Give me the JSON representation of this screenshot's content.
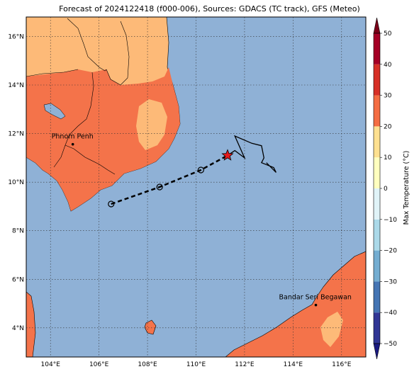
{
  "title": "Forecast of 2024122418 (f000-006), Sources: GDACS (TC track), GFS (Meteo)",
  "map": {
    "lon_range": [
      103.0,
      117.0
    ],
    "lat_range": [
      2.8,
      16.8
    ],
    "x_ticks": [
      {
        "value": 104,
        "label": "104°E"
      },
      {
        "value": 106,
        "label": "106°E"
      },
      {
        "value": 108,
        "label": "108°E"
      },
      {
        "value": 110,
        "label": "110°E"
      },
      {
        "value": 112,
        "label": "112°E"
      },
      {
        "value": 114,
        "label": "114°E"
      },
      {
        "value": 116,
        "label": "116°E"
      }
    ],
    "y_ticks": [
      {
        "value": 4,
        "label": "4°N"
      },
      {
        "value": 6,
        "label": "6°N"
      },
      {
        "value": 8,
        "label": "8°N"
      },
      {
        "value": 10,
        "label": "10°N"
      },
      {
        "value": 12,
        "label": "12°N"
      },
      {
        "value": 14,
        "label": "14°N"
      },
      {
        "value": 16,
        "label": "16°N"
      }
    ],
    "gridlines": true,
    "sea_color": "#8fb1d6",
    "cities": [
      {
        "name": "Phnom Penh",
        "lon": 104.92,
        "lat": 11.56
      },
      {
        "name": "Bandar Seri Begawan",
        "lon": 114.94,
        "lat": 4.94
      }
    ],
    "forecast_track": [
      {
        "lon": 106.5,
        "lat": 9.1
      },
      {
        "lon": 108.5,
        "lat": 9.8
      },
      {
        "lon": 110.2,
        "lat": 10.5
      },
      {
        "lon": 111.3,
        "lat": 11.1
      }
    ],
    "current_position": {
      "lon": 111.3,
      "lat": 11.1
    },
    "past_track": [
      {
        "lon": 111.3,
        "lat": 11.1
      },
      {
        "lon": 111.6,
        "lat": 11.3
      },
      {
        "lon": 112.0,
        "lat": 11.0
      },
      {
        "lon": 111.6,
        "lat": 11.9
      },
      {
        "lon": 112.3,
        "lat": 11.6
      },
      {
        "lon": 112.7,
        "lat": 11.5
      },
      {
        "lon": 112.8,
        "lat": 11.0
      },
      {
        "lon": 112.7,
        "lat": 10.8
      },
      {
        "lon": 113.2,
        "lat": 10.6
      },
      {
        "lon": 113.3,
        "lat": 10.4
      },
      {
        "lon": 112.9,
        "lat": 10.8
      }
    ]
  },
  "colorbar": {
    "label": "Max Temperature (°C)",
    "min": -50,
    "max": 50,
    "levels": [
      {
        "from": -50,
        "to": -40,
        "color": "#313695"
      },
      {
        "from": -40,
        "to": -30,
        "color": "#4575b4"
      },
      {
        "from": -30,
        "to": -20,
        "color": "#74add1"
      },
      {
        "from": -20,
        "to": -10,
        "color": "#abd9e9"
      },
      {
        "from": -10,
        "to": 0,
        "color": "#e0f3f8"
      },
      {
        "from": 0,
        "to": 10,
        "color": "#ffffbf"
      },
      {
        "from": 10,
        "to": 20,
        "color": "#fee090"
      },
      {
        "from": 20,
        "to": 30,
        "color": "#f46d43"
      },
      {
        "from": 30,
        "to": 40,
        "color": "#d73027"
      },
      {
        "from": 40,
        "to": 50,
        "color": "#a50026"
      }
    ],
    "under_color": "#1a1a80",
    "over_color": "#7a0018",
    "ticks": [
      {
        "value": 50,
        "label": "50"
      },
      {
        "value": 40,
        "label": "40"
      },
      {
        "value": 30,
        "label": "30"
      },
      {
        "value": 20,
        "label": "20"
      },
      {
        "value": 10,
        "label": "10"
      },
      {
        "value": 0,
        "label": "0"
      },
      {
        "value": -10,
        "label": "−10"
      },
      {
        "value": -20,
        "label": "−20"
      },
      {
        "value": -30,
        "label": "−30"
      },
      {
        "value": -40,
        "label": "−40"
      },
      {
        "value": -50,
        "label": "−50"
      }
    ]
  },
  "land_colors": {
    "warm": "#f4734a",
    "mild": "#fdba78"
  }
}
